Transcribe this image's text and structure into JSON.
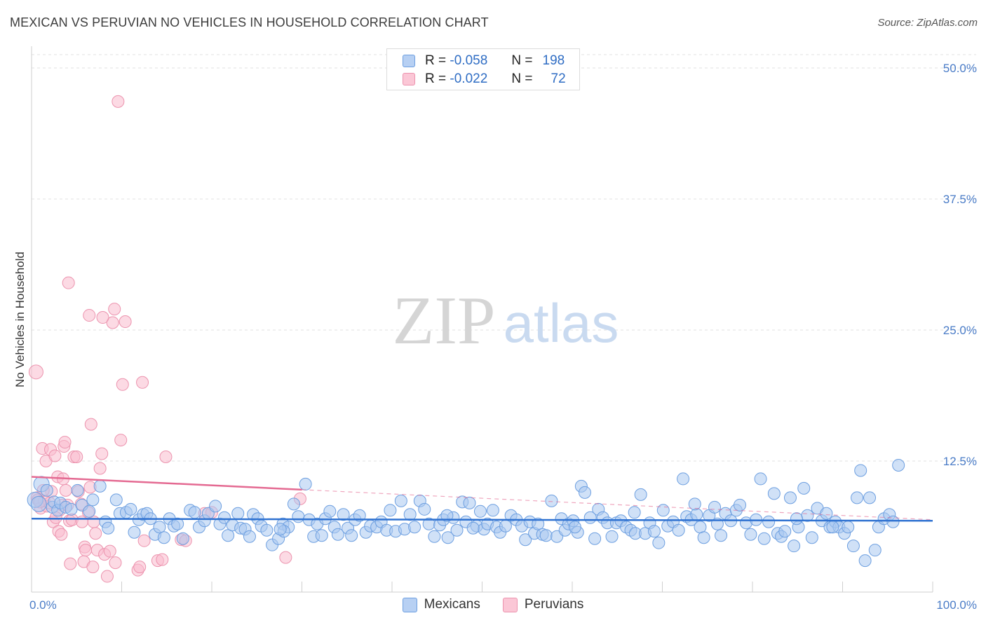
{
  "header": {
    "title": "MEXICAN VS PERUVIAN NO VEHICLES IN HOUSEHOLD CORRELATION CHART",
    "source": "Source: ZipAtlas.com"
  },
  "watermark": {
    "zip": "ZIP",
    "atlas": "atlas"
  },
  "legend": {
    "mexicans": {
      "r_label": "R =",
      "r_value": "-0.058",
      "n_label": "N =",
      "n_value": "198"
    },
    "peruvians": {
      "r_label": "R =",
      "r_value": "-0.022",
      "n_label": "N =",
      "n_value": "72"
    }
  },
  "bottom_legend": {
    "mexicans": "Mexicans",
    "peruvians": "Peruvians"
  },
  "colors": {
    "mexican_fill": "#a9c8f0",
    "mexican_stroke": "#6d9fe0",
    "mexican_line": "#2f72d1",
    "peruvian_fill": "#f9bccd",
    "peruvian_stroke": "#ec93ae",
    "peruvian_line": "#e46a92",
    "grid": "#e0e0e0",
    "tick": "#4a7cc7"
  },
  "chart_data": {
    "type": "scatter",
    "title": "MEXICAN VS PERUVIAN NO VEHICLES IN HOUSEHOLD CORRELATION CHART",
    "xlabel": "",
    "ylabel": "No Vehicles in Household",
    "xlim": [
      0,
      100
    ],
    "ylim": [
      0,
      50
    ],
    "y_ticks": [
      {
        "value": 12.5,
        "label": "12.5%"
      },
      {
        "value": 25,
        "label": "25.0%"
      },
      {
        "value": 37.5,
        "label": "37.5%"
      },
      {
        "value": 50,
        "label": "50.0%"
      }
    ],
    "x_ticks": [
      {
        "value": 0,
        "label": "0.0%"
      },
      {
        "value": 100,
        "label": "100.0%"
      }
    ],
    "series": [
      {
        "name": "Mexicans",
        "r": -0.058,
        "n": 198,
        "trend": {
          "x": [
            0,
            100
          ],
          "y": [
            7.0,
            6.8
          ],
          "dashed_from": null
        },
        "points": [
          [
            0.4,
            8.8
          ],
          [
            0.8,
            8.4
          ],
          [
            1.1,
            10.3
          ],
          [
            1.7,
            9.7
          ],
          [
            2.3,
            8.1
          ],
          [
            2.5,
            8.6
          ],
          [
            2.9,
            7.8
          ],
          [
            3.2,
            8.5
          ],
          [
            3.8,
            8.1
          ],
          [
            4.4,
            7.9
          ],
          [
            5.1,
            9.7
          ],
          [
            5.6,
            8.3
          ],
          [
            6.4,
            7.7
          ],
          [
            6.8,
            8.8
          ],
          [
            7.6,
            10.1
          ],
          [
            8.2,
            6.7
          ],
          [
            8.5,
            6.1
          ],
          [
            9.4,
            8.8
          ],
          [
            9.8,
            7.5
          ],
          [
            10.5,
            7.6
          ],
          [
            11.0,
            7.9
          ],
          [
            11.4,
            5.7
          ],
          [
            11.9,
            6.9
          ],
          [
            12.4,
            7.4
          ],
          [
            12.8,
            7.5
          ],
          [
            13.2,
            7.0
          ],
          [
            13.7,
            5.5
          ],
          [
            14.2,
            6.2
          ],
          [
            14.7,
            5.2
          ],
          [
            15.3,
            7.0
          ],
          [
            15.8,
            6.3
          ],
          [
            16.2,
            6.5
          ],
          [
            16.8,
            5.1
          ],
          [
            17.6,
            7.8
          ],
          [
            18.1,
            7.6
          ],
          [
            18.6,
            6.2
          ],
          [
            19.2,
            6.8
          ],
          [
            19.6,
            7.5
          ],
          [
            20.4,
            8.2
          ],
          [
            20.9,
            6.5
          ],
          [
            21.4,
            7.1
          ],
          [
            21.8,
            5.4
          ],
          [
            22.3,
            6.4
          ],
          [
            22.9,
            7.5
          ],
          [
            23.2,
            6.1
          ],
          [
            23.7,
            6.0
          ],
          [
            24.2,
            5.3
          ],
          [
            24.6,
            7.4
          ],
          [
            25.1,
            7.0
          ],
          [
            25.5,
            6.3
          ],
          [
            26.1,
            5.9
          ],
          [
            26.7,
            4.5
          ],
          [
            27.4,
            5.1
          ],
          [
            27.9,
            6.5
          ],
          [
            28.5,
            6.2
          ],
          [
            29.1,
            8.4
          ],
          [
            29.6,
            7.2
          ],
          [
            30.4,
            10.3
          ],
          [
            30.8,
            6.9
          ],
          [
            31.3,
            5.3
          ],
          [
            31.7,
            6.5
          ],
          [
            32.2,
            5.4
          ],
          [
            32.6,
            7.0
          ],
          [
            33.1,
            7.7
          ],
          [
            33.6,
            6.2
          ],
          [
            34.0,
            5.5
          ],
          [
            34.6,
            7.4
          ],
          [
            35.1,
            6.1
          ],
          [
            35.5,
            5.4
          ],
          [
            35.9,
            6.9
          ],
          [
            36.4,
            7.3
          ],
          [
            37.1,
            5.7
          ],
          [
            37.6,
            6.3
          ],
          [
            38.3,
            6.2
          ],
          [
            38.8,
            6.7
          ],
          [
            39.4,
            5.9
          ],
          [
            39.8,
            7.8
          ],
          [
            40.4,
            5.8
          ],
          [
            41.0,
            8.7
          ],
          [
            41.4,
            6.0
          ],
          [
            42.0,
            7.4
          ],
          [
            42.5,
            6.2
          ],
          [
            43.1,
            8.7
          ],
          [
            43.6,
            7.9
          ],
          [
            44.1,
            6.5
          ],
          [
            44.7,
            5.3
          ],
          [
            45.3,
            6.4
          ],
          [
            45.7,
            6.9
          ],
          [
            46.2,
            5.2
          ],
          [
            46.8,
            7.1
          ],
          [
            47.2,
            5.9
          ],
          [
            47.8,
            8.6
          ],
          [
            48.2,
            6.7
          ],
          [
            48.6,
            8.5
          ],
          [
            49.4,
            6.3
          ],
          [
            49.8,
            7.7
          ],
          [
            50.2,
            6.0
          ],
          [
            50.6,
            6.5
          ],
          [
            51.2,
            7.8
          ],
          [
            51.6,
            6.2
          ],
          [
            52.0,
            5.7
          ],
          [
            52.6,
            6.3
          ],
          [
            53.2,
            7.3
          ],
          [
            53.8,
            6.9
          ],
          [
            54.4,
            6.3
          ],
          [
            54.8,
            5.0
          ],
          [
            55.3,
            6.7
          ],
          [
            55.8,
            5.6
          ],
          [
            56.2,
            6.5
          ],
          [
            56.7,
            5.5
          ],
          [
            57.1,
            5.4
          ],
          [
            57.7,
            8.7
          ],
          [
            58.3,
            5.3
          ],
          [
            58.8,
            7.0
          ],
          [
            59.2,
            5.9
          ],
          [
            59.6,
            6.5
          ],
          [
            60.1,
            6.8
          ],
          [
            60.6,
            5.7
          ],
          [
            61.0,
            10.1
          ],
          [
            61.4,
            9.5
          ],
          [
            62.0,
            7.1
          ],
          [
            62.5,
            5.1
          ],
          [
            62.9,
            7.9
          ],
          [
            63.4,
            7.1
          ],
          [
            63.9,
            6.6
          ],
          [
            64.4,
            5.3
          ],
          [
            64.9,
            6.6
          ],
          [
            65.4,
            6.8
          ],
          [
            66.0,
            6.2
          ],
          [
            66.5,
            5.9
          ],
          [
            67.0,
            5.6
          ],
          [
            67.6,
            9.3
          ],
          [
            68.1,
            5.6
          ],
          [
            68.6,
            6.6
          ],
          [
            69.1,
            5.8
          ],
          [
            69.6,
            4.7
          ],
          [
            70.1,
            7.8
          ],
          [
            70.6,
            6.3
          ],
          [
            71.2,
            6.7
          ],
          [
            71.8,
            5.9
          ],
          [
            72.3,
            10.8
          ],
          [
            72.7,
            7.2
          ],
          [
            73.2,
            6.9
          ],
          [
            73.8,
            7.4
          ],
          [
            74.2,
            6.2
          ],
          [
            74.6,
            5.2
          ],
          [
            75.2,
            7.3
          ],
          [
            75.8,
            8.1
          ],
          [
            76.1,
            6.5
          ],
          [
            76.5,
            5.4
          ],
          [
            77.0,
            7.5
          ],
          [
            77.6,
            6.8
          ],
          [
            78.2,
            7.8
          ],
          [
            78.6,
            8.3
          ],
          [
            79.3,
            6.6
          ],
          [
            79.8,
            5.5
          ],
          [
            80.4,
            6.9
          ],
          [
            80.9,
            10.8
          ],
          [
            81.3,
            5.1
          ],
          [
            81.8,
            6.7
          ],
          [
            82.4,
            9.4
          ],
          [
            82.8,
            5.6
          ],
          [
            83.2,
            5.3
          ],
          [
            83.6,
            5.8
          ],
          [
            84.2,
            9.0
          ],
          [
            84.6,
            4.4
          ],
          [
            85.1,
            6.2
          ],
          [
            85.7,
            9.9
          ],
          [
            86.1,
            7.3
          ],
          [
            86.6,
            5.2
          ],
          [
            87.2,
            8.0
          ],
          [
            87.7,
            6.8
          ],
          [
            88.2,
            7.5
          ],
          [
            88.6,
            6.2
          ],
          [
            89.2,
            6.7
          ],
          [
            89.6,
            6.2
          ],
          [
            90.2,
            5.6
          ],
          [
            90.6,
            6.2
          ],
          [
            91.2,
            4.4
          ],
          [
            91.6,
            9.0
          ],
          [
            92.0,
            11.6
          ],
          [
            92.5,
            3.0
          ],
          [
            93.0,
            9.0
          ],
          [
            93.6,
            4.0
          ],
          [
            94.0,
            6.2
          ],
          [
            94.6,
            7.0
          ],
          [
            95.2,
            7.4
          ],
          [
            95.6,
            6.7
          ],
          [
            96.2,
            12.1
          ],
          [
            88.9,
            6.2
          ],
          [
            84.9,
            7.0
          ],
          [
            66.9,
            7.6
          ],
          [
            73.6,
            8.4
          ],
          [
            46.1,
            7.3
          ],
          [
            60.3,
            6.2
          ],
          [
            28.0,
            5.8
          ],
          [
            49.0,
            6.1
          ],
          [
            27.6,
            6.0
          ]
        ]
      },
      {
        "name": "Peruvians",
        "r": -0.022,
        "n": 72,
        "trend": {
          "x": [
            0,
            100
          ],
          "y": [
            11.0,
            6.9
          ],
          "dashed_from": 30
        },
        "points": [
          [
            0.5,
            21.0
          ],
          [
            0.6,
            9.0
          ],
          [
            0.7,
            8.8
          ],
          [
            1.0,
            8.0
          ],
          [
            1.2,
            13.7
          ],
          [
            1.4,
            8.7
          ],
          [
            1.6,
            12.5
          ],
          [
            1.7,
            8.2
          ],
          [
            2.0,
            8.5
          ],
          [
            2.1,
            13.6
          ],
          [
            2.2,
            9.6
          ],
          [
            2.4,
            6.7
          ],
          [
            2.6,
            13.0
          ],
          [
            2.9,
            11.0
          ],
          [
            3.0,
            5.8
          ],
          [
            3.1,
            7.8
          ],
          [
            3.3,
            5.5
          ],
          [
            3.4,
            8.3
          ],
          [
            3.5,
            10.8
          ],
          [
            3.6,
            13.9
          ],
          [
            3.7,
            14.3
          ],
          [
            4.0,
            8.3
          ],
          [
            4.2,
            6.8
          ],
          [
            4.3,
            2.7
          ],
          [
            4.5,
            6.9
          ],
          [
            4.7,
            12.9
          ],
          [
            5.0,
            12.9
          ],
          [
            5.2,
            9.6
          ],
          [
            5.5,
            8.4
          ],
          [
            5.6,
            6.7
          ],
          [
            5.8,
            2.9
          ],
          [
            5.9,
            4.3
          ],
          [
            6.0,
            4.0
          ],
          [
            6.3,
            7.6
          ],
          [
            6.5,
            10.0
          ],
          [
            6.6,
            16.0
          ],
          [
            6.8,
            2.4
          ],
          [
            6.9,
            6.7
          ],
          [
            7.1,
            5.6
          ],
          [
            7.3,
            4.0
          ],
          [
            7.6,
            11.8
          ],
          [
            7.8,
            13.2
          ],
          [
            8.1,
            3.6
          ],
          [
            8.4,
            1.5
          ],
          [
            8.7,
            3.9
          ],
          [
            9.0,
            25.7
          ],
          [
            9.2,
            27.0
          ],
          [
            9.6,
            46.8
          ],
          [
            9.9,
            14.5
          ],
          [
            10.1,
            19.8
          ],
          [
            10.4,
            25.8
          ],
          [
            11.8,
            2.1
          ],
          [
            12.0,
            2.4
          ],
          [
            12.3,
            20.0
          ],
          [
            12.5,
            4.9
          ],
          [
            14.0,
            3.0
          ],
          [
            14.5,
            3.1
          ],
          [
            14.9,
            12.9
          ],
          [
            16.6,
            5.0
          ],
          [
            17.1,
            4.9
          ],
          [
            19.2,
            7.5
          ],
          [
            20.0,
            7.6
          ],
          [
            28.2,
            3.3
          ],
          [
            29.8,
            8.9
          ],
          [
            4.1,
            29.5
          ],
          [
            6.4,
            26.4
          ],
          [
            7.9,
            26.2
          ],
          [
            9.3,
            2.8
          ],
          [
            0.9,
            8.6
          ],
          [
            1.3,
            9.7
          ],
          [
            2.7,
            7.1
          ],
          [
            3.8,
            9.7
          ]
        ]
      }
    ]
  }
}
